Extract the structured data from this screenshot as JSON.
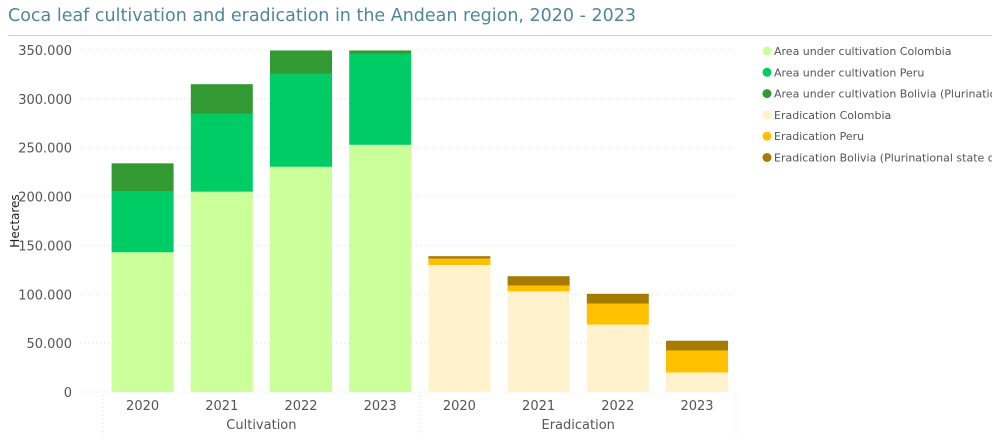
{
  "chart_data": {
    "type": "bar",
    "stacked": true,
    "title": "Coca leaf cultivation and eradication in the Andean region, 2020 - 2023",
    "ylabel": "Hectares",
    "xlabel": "",
    "ylim": [
      0,
      350000
    ],
    "yticks": [
      0,
      50000,
      100000,
      150000,
      200000,
      250000,
      300000,
      350000
    ],
    "ytick_labels": [
      "0",
      "50.000",
      "100.000",
      "150.000",
      "200.000",
      "250.000",
      "300.000",
      "350.000"
    ],
    "grid": true,
    "legend_position": "right",
    "groups": [
      {
        "label": "Cultivation",
        "categories": [
          "2020",
          "2021",
          "2022",
          "2023"
        ]
      },
      {
        "label": "Eradication",
        "categories": [
          "2020",
          "2021",
          "2022",
          "2023"
        ]
      }
    ],
    "series": [
      {
        "name": "Area under cultivation Colombia",
        "group": 0,
        "color": "#caff99",
        "values": [
          143000,
          205000,
          230500,
          253000
        ]
      },
      {
        "name": "Area under cultivation Peru",
        "group": 0,
        "color": "#00cc66",
        "values": [
          62000,
          80000,
          95000,
          93000
        ]
      },
      {
        "name": "Area under cultivation Bolivia (Plurinational s",
        "group": 0,
        "color": "#339933",
        "values": [
          29000,
          30000,
          24000,
          3500
        ]
      },
      {
        "name": "Eradication Colombia",
        "group": 1,
        "color": "#fff2cc",
        "values": [
          130000,
          103000,
          69000,
          20000
        ]
      },
      {
        "name": "Eradication Peru",
        "group": 1,
        "color": "#ffc000",
        "values": [
          6500,
          6000,
          21500,
          22500
        ]
      },
      {
        "name": "Eradication Bolivia (Plurinational state of)",
        "group": 1,
        "color": "#a67c00",
        "values": [
          2500,
          9500,
          10000,
          10000
        ]
      }
    ]
  }
}
